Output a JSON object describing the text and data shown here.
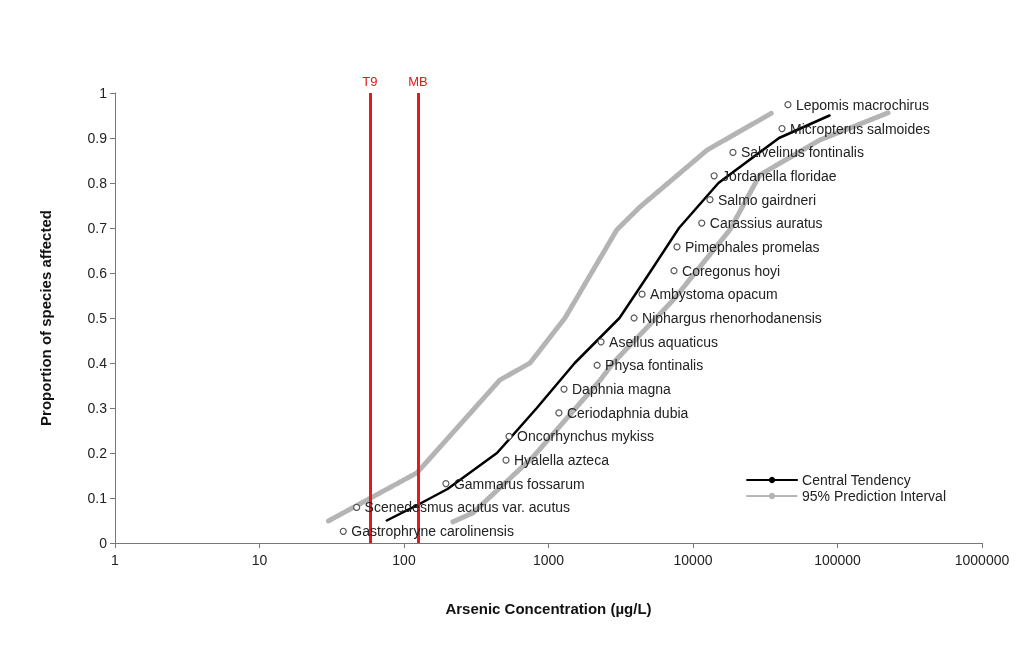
{
  "chart_data": {
    "type": "line",
    "xlabel": "Arsenic Concentration (µg/L)",
    "ylabel": "Proportion of species affected",
    "log": "x",
    "xlim": [
      1,
      1000000
    ],
    "xticks": [
      1,
      10,
      100,
      1000,
      10000,
      100000,
      1000000
    ],
    "ylim": [
      0,
      1
    ],
    "yticks": [
      0,
      0.1,
      0.2,
      0.3,
      0.4,
      0.5,
      0.6,
      0.7,
      0.8,
      0.9,
      1
    ],
    "grid": false,
    "legend": "bottom right",
    "series": [
      {
        "name": "Central Tendency",
        "color": "#000000",
        "line_style": "solid",
        "marker": "none",
        "x": [
          76,
          125,
          200,
          440,
          830,
          1520,
          3100,
          5000,
          8000,
          15000,
          39400,
          88000
        ],
        "values": [
          0.05,
          0.085,
          0.12,
          0.2,
          0.3,
          0.4,
          0.5,
          0.6,
          0.7,
          0.8,
          0.9,
          0.95
        ]
      },
      {
        "name": "95% Prediction Interval",
        "color": "#b4b4b4",
        "line_style": "dotted",
        "marker": "none",
        "x": [
          218,
          300,
          780,
          2280,
          2800,
          7300,
          18000,
          29000,
          76000,
          224000
        ],
        "values": [
          0.047,
          0.067,
          0.191,
          0.362,
          0.4,
          0.54,
          0.696,
          0.818,
          0.896,
          0.956
        ]
      },
      {
        "color": "#b4b4b4",
        "line_style": "dotted",
        "marker": "none",
        "x": [
          30,
          123,
          460,
          745,
          1300,
          2970,
          4300,
          12500,
          35300
        ],
        "values": [
          0.049,
          0.156,
          0.362,
          0.4,
          0.5,
          0.696,
          0.747,
          0.873,
          0.956
        ]
      },
      {
        "type": "scatter",
        "color": "#555555",
        "marker": "circle",
        "x": [
          38,
          47,
          195,
          508,
          533,
          1180,
          1280,
          2170,
          2310,
          3910,
          4440,
          7390,
          7750,
          11500,
          13100,
          14000,
          18900,
          41300,
          45400
        ],
        "values": [
          0.026,
          0.079,
          0.132,
          0.184,
          0.237,
          0.289,
          0.342,
          0.395,
          0.447,
          0.5,
          0.553,
          0.605,
          0.658,
          0.711,
          0.763,
          0.816,
          0.868,
          0.921,
          0.974
        ]
      }
    ],
    "ref_lines": [
      {
        "axis": "x",
        "value": 58,
        "label": "T9",
        "color": "#e8171b"
      },
      {
        "axis": "x",
        "value": 125,
        "label": "MB",
        "color": "#e8171b"
      }
    ],
    "annotations": [
      {
        "text": "Gastrophryne carolinensis",
        "x": 38,
        "y": 0.026
      },
      {
        "text": "Scenedesmus acutus var. acutus",
        "x": 47,
        "y": 0.079
      },
      {
        "text": "Gammarus fossarum",
        "x": 195,
        "y": 0.132
      },
      {
        "text": "Hyalella azteca",
        "x": 508,
        "y": 0.184
      },
      {
        "text": "Oncorhynchus mykiss",
        "x": 533,
        "y": 0.237
      },
      {
        "text": "Ceriodaphnia dubia",
        "x": 1180,
        "y": 0.289
      },
      {
        "text": "Daphnia magna",
        "x": 1280,
        "y": 0.342
      },
      {
        "text": "Physa fontinalis",
        "x": 2170,
        "y": 0.395
      },
      {
        "text": "Asellus aquaticus",
        "x": 2310,
        "y": 0.447
      },
      {
        "text": "Niphargus rhenorhodanensis",
        "x": 3910,
        "y": 0.5
      },
      {
        "text": "Ambystoma opacum",
        "x": 4440,
        "y": 0.553
      },
      {
        "text": "Coregonus hoyi",
        "x": 7390,
        "y": 0.605
      },
      {
        "text": "Pimephales promelas",
        "x": 7750,
        "y": 0.658
      },
      {
        "text": "Carassius auratus",
        "x": 11500,
        "y": 0.711
      },
      {
        "text": "Salmo gairdneri",
        "x": 13100,
        "y": 0.763
      },
      {
        "text": "Jordanella floridae",
        "x": 14000,
        "y": 0.816
      },
      {
        "text": "Salvelinus fontinalis",
        "x": 18900,
        "y": 0.868
      },
      {
        "text": "Micropterus salmoides",
        "x": 41300,
        "y": 0.921
      },
      {
        "text": "Lepomis macrochirus",
        "x": 45400,
        "y": 0.974
      }
    ]
  }
}
